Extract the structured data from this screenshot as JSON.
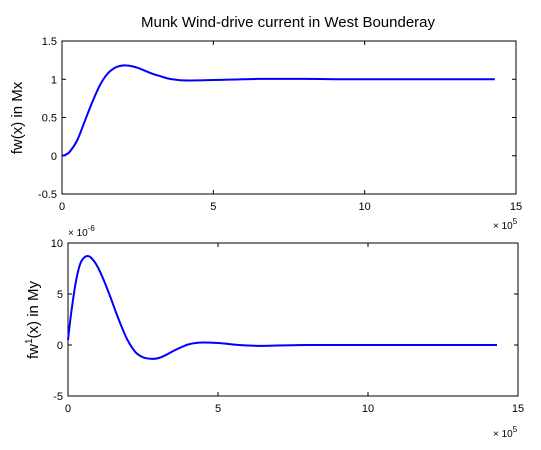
{
  "chart_data": [
    {
      "type": "line",
      "title": "Munk Wind-drive current in West Bounderay",
      "ylabel": "fw(x) in Mx",
      "xlabel": "",
      "x_multiplier_label": "× 10",
      "x_multiplier_exp": "5",
      "xlim": [
        0,
        1500000
      ],
      "ylim": [
        -0.5,
        1.5
      ],
      "x_ticks": [
        0,
        500000,
        1000000,
        1500000
      ],
      "x_tick_labels": [
        "0",
        "5",
        "10",
        "15"
      ],
      "y_ticks": [
        -0.5,
        0,
        0.5,
        1,
        1.5
      ],
      "y_tick_labels": [
        "-0.5",
        "0",
        "0.5",
        "1",
        "1.5"
      ],
      "grid": false,
      "series_color": "#0000ff",
      "series": [
        {
          "x": [
            0,
            10000,
            25000,
            50000,
            75000,
            100000,
            125000,
            150000,
            175000,
            200000,
            225000,
            250000,
            275000,
            300000,
            325000,
            350000,
            375000,
            400000,
            450000,
            500000,
            550000,
            600000,
            650000,
            700000,
            800000,
            900000,
            1000000,
            1100000,
            1200000,
            1300000,
            1400000,
            1430000
          ],
          "y": [
            0.0,
            0.01,
            0.05,
            0.2,
            0.45,
            0.7,
            0.92,
            1.07,
            1.15,
            1.18,
            1.175,
            1.15,
            1.11,
            1.07,
            1.04,
            1.01,
            0.995,
            0.985,
            0.985,
            0.99,
            0.995,
            1.0,
            1.005,
            1.005,
            1.005,
            1.0,
            1.0,
            1.0,
            1.0,
            1.0,
            1.0,
            1.0
          ]
        }
      ]
    },
    {
      "type": "line",
      "title": "",
      "ylabel_base": "fw",
      "ylabel_sup": "1",
      "ylabel_rest": "(x) in My",
      "xlabel": "",
      "x_multiplier_label": "× 10",
      "x_multiplier_exp": "5",
      "y_multiplier_label": "× 10",
      "y_multiplier_exp": "-6",
      "xlim": [
        0,
        1500000
      ],
      "ylim": [
        -5,
        10
      ],
      "x_ticks": [
        0,
        500000,
        1000000,
        1500000
      ],
      "x_tick_labels": [
        "0",
        "5",
        "10",
        "15"
      ],
      "y_ticks": [
        -5,
        0,
        5,
        10
      ],
      "y_tick_labels": [
        "-5",
        "0",
        "5",
        "10"
      ],
      "grid": false,
      "series_color": "#0000ff",
      "series": [
        {
          "x": [
            0,
            10000,
            25000,
            40000,
            55000,
            70000,
            85000,
            100000,
            120000,
            140000,
            160000,
            180000,
            200000,
            225000,
            250000,
            275000,
            300000,
            325000,
            350000,
            375000,
            400000,
            425000,
            450000,
            500000,
            550000,
            600000,
            650000,
            700000,
            750000,
            800000,
            900000,
            1000000,
            1100000,
            1200000,
            1300000,
            1400000,
            1430000
          ],
          "y": [
            0.5,
            3.0,
            6.0,
            7.9,
            8.6,
            8.7,
            8.3,
            7.6,
            6.3,
            4.8,
            3.2,
            1.7,
            0.4,
            -0.7,
            -1.2,
            -1.35,
            -1.3,
            -1.0,
            -0.6,
            -0.25,
            0.05,
            0.2,
            0.25,
            0.2,
            0.05,
            -0.05,
            -0.08,
            -0.05,
            -0.02,
            0.0,
            0.0,
            0.0,
            0.0,
            0.0,
            0.0,
            0.0,
            0.0
          ]
        }
      ]
    }
  ]
}
